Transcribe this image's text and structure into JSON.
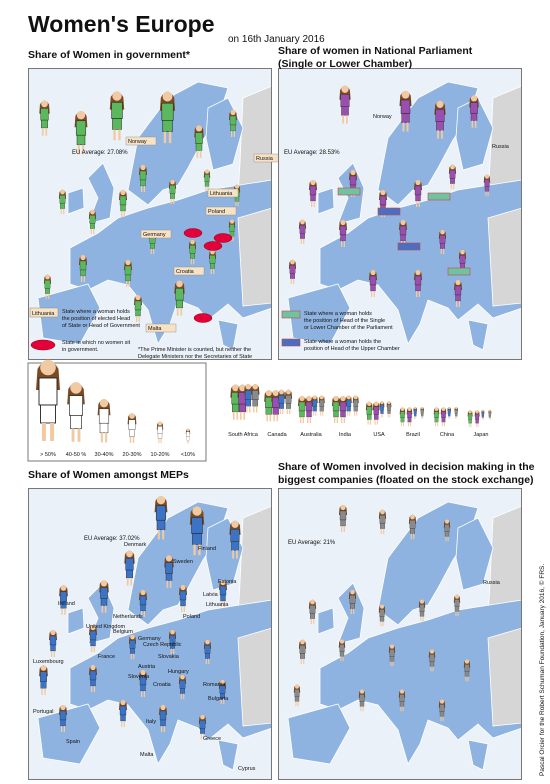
{
  "header": {
    "title": "Women's Europe",
    "date": "on 16th January 2016"
  },
  "panels": [
    {
      "title": [
        "Share of Women in government*"
      ],
      "average": "EU Average: 27.08%",
      "places": [
        "Norway",
        "Russia",
        "Lithuania",
        "Poland",
        "Germany",
        "Croatia",
        "Malta"
      ],
      "legend": [
        {
          "label": "Lithuania",
          "lines": [
            "State where a woman holds",
            "the position of elected Head",
            "of State or Head of Government"
          ]
        },
        {
          "lines": [
            "State in which no women sit",
            "in government."
          ]
        }
      ],
      "note": [
        "*The Prime Minister is counted, but neither the",
        "Delegate Ministers nor the Secretaries of State"
      ]
    },
    {
      "title": [
        "Share of women in National Parliament",
        "(Single or Lower Chamber)"
      ],
      "average": "EU Average: 28.53%",
      "places": [
        "Norway",
        "Russia"
      ],
      "legend": [
        {
          "lines": [
            "State where a woman holds",
            "the position of Head of the Single",
            "or Lower Chamber of the Parliament"
          ]
        },
        {
          "lines": [
            "State where a woman holds the",
            "position of Head of the Upper Chamber"
          ]
        }
      ]
    },
    {
      "title": [
        "Share of Women amongst MEPs"
      ],
      "average": "EU Average: 37.02%",
      "places": [
        "Denmark",
        "Finland",
        "Sweden",
        "Estonia",
        "Ireland",
        "United Kingdom",
        "Netherlands",
        "Latvia",
        "Lithuania",
        "Belgium",
        "Germany",
        "Poland",
        "Luxembourg",
        "France",
        "Czech Republic",
        "Slovakia",
        "Austria",
        "Hungary",
        "Slovenia",
        "Romania",
        "Croatia",
        "Bulgaria",
        "Portugal",
        "Spain",
        "Italy",
        "Greece",
        "Malta",
        "Cyprus"
      ]
    },
    {
      "title": [
        "Share of Women involved in decision making in the",
        "biggest companies (floated on the stock exchange)"
      ],
      "average": "EU Average: 21%",
      "places": [
        "Russia"
      ]
    }
  ],
  "scale": [
    "> 50%",
    "40-50 %",
    "30-40%",
    "20-30%",
    "10-20%",
    "<10%"
  ],
  "world": [
    "South Africa",
    "Canada",
    "Australia",
    "India",
    "USA",
    "Brazil",
    "China",
    "Japan"
  ],
  "credit": "Pascal Orcier for the Robert Schuman Foundation, January 2016, © FRS."
}
